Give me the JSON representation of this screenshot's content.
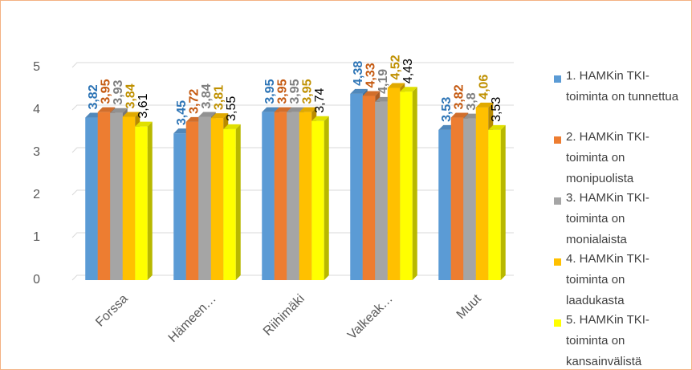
{
  "chart_data": {
    "type": "bar3d",
    "categories": [
      "Forssa",
      "Hämeen…",
      "Riihimäki",
      "Valkeak…",
      "Muut"
    ],
    "series": [
      {
        "name": "1. HAMKin TKI-toiminta on tunnettua",
        "color": "#5b9bd5",
        "label_color": "#2e75b6",
        "values": [
          3.82,
          3.45,
          3.95,
          4.38,
          3.53
        ],
        "value_labels": [
          "3,82",
          "3,45",
          "3,95",
          "4,38",
          "3,53"
        ]
      },
      {
        "name": "2. HAMKin TKI-toiminta on monipuolista",
        "color": "#ed7d31",
        "label_color": "#c55a11",
        "values": [
          3.95,
          3.72,
          3.95,
          4.33,
          3.82
        ],
        "value_labels": [
          "3,95",
          "3,72",
          "3,95",
          "4,33",
          "3,82"
        ]
      },
      {
        "name": "3. HAMKin TKI-toiminta on monialaista",
        "color": "#a5a5a5",
        "label_color": "#7f7f7f",
        "values": [
          3.93,
          3.84,
          3.95,
          4.19,
          3.8
        ],
        "value_labels": [
          "3,93",
          "3,84",
          "3,95",
          "4,19",
          "3,8"
        ]
      },
      {
        "name": "4. HAMKin TKI-toiminta on laadukasta",
        "color": "#ffc000",
        "label_color": "#bf9000",
        "values": [
          3.84,
          3.81,
          3.95,
          4.52,
          4.06
        ],
        "value_labels": [
          "3,84",
          "3,81",
          "3,95",
          "4,52",
          "4,06"
        ]
      },
      {
        "name": "5. HAMKin TKI-toiminta on kansainvälistä",
        "color": "#ffff00",
        "label_color": "#000000",
        "values": [
          3.61,
          3.55,
          3.74,
          4.43,
          3.53
        ],
        "value_labels": [
          "3,61",
          "3,55",
          "3,74",
          "4,43",
          "3,53"
        ]
      }
    ],
    "ylim": [
      0,
      5
    ],
    "yticks": [
      0,
      1,
      2,
      3,
      4,
      5
    ],
    "grid": true,
    "legend": "right"
  }
}
